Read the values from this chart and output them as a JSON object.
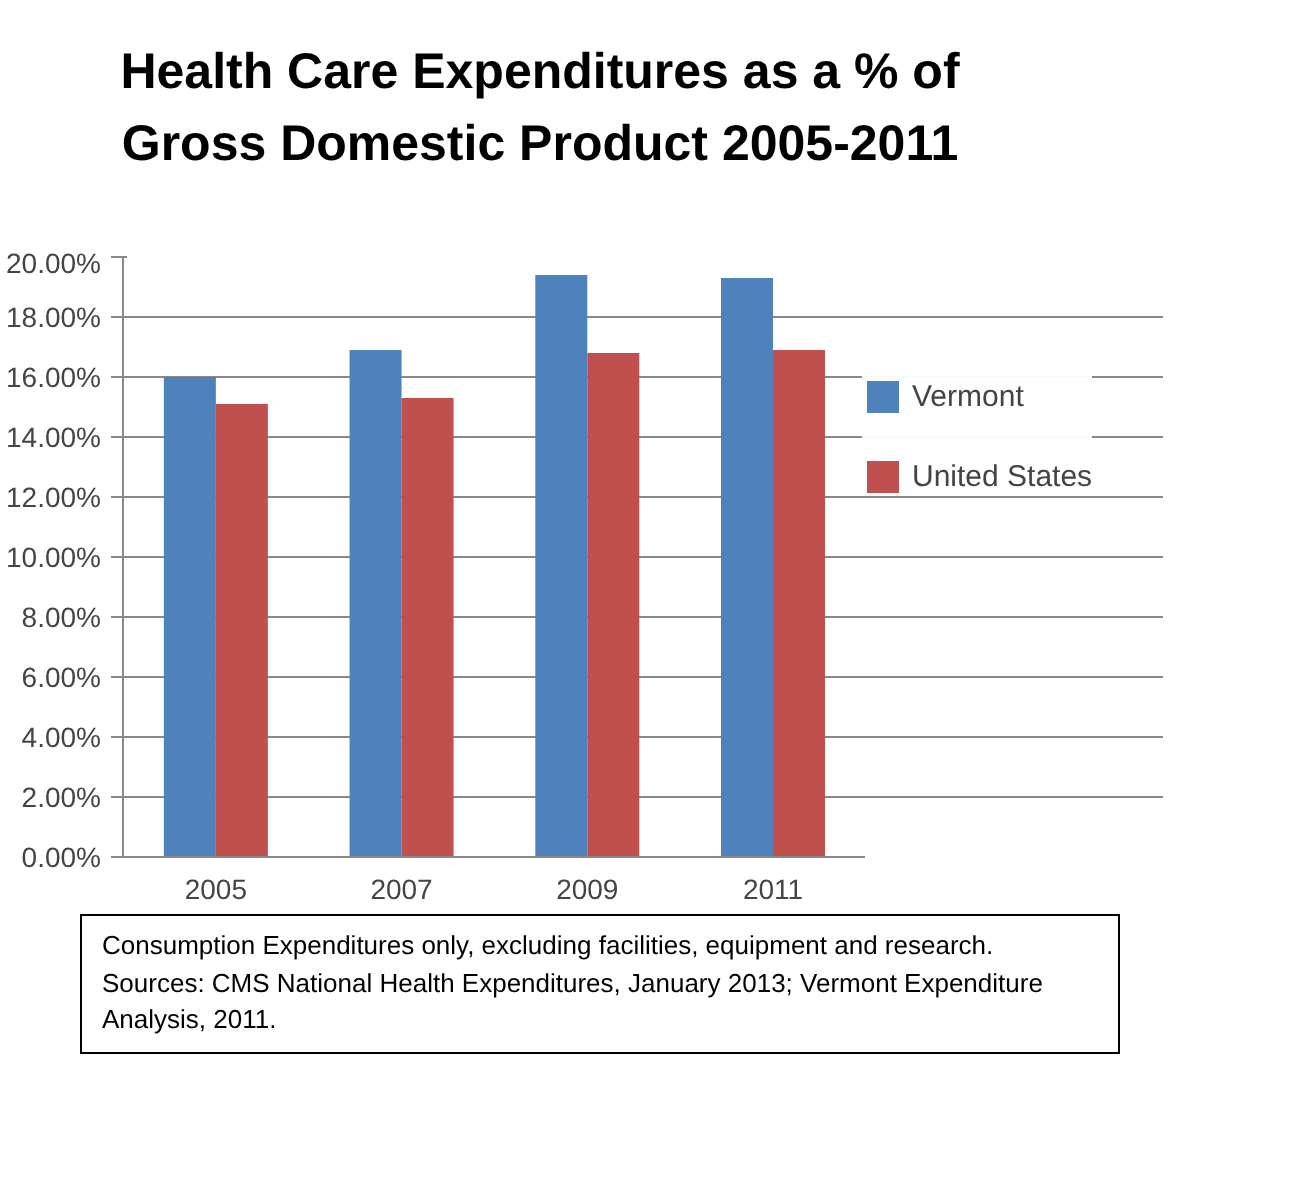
{
  "chart_data": {
    "type": "bar",
    "title": "Health Care Expenditures as a % of Gross Domestic Product 2005-2011",
    "categories": [
      "2005",
      "2007",
      "2009",
      "2011"
    ],
    "series": [
      {
        "name": "Vermont",
        "color": "#4f81bd",
        "values": [
          16.0,
          16.9,
          19.4,
          19.3
        ]
      },
      {
        "name": "United States",
        "color": "#c0504d",
        "values": [
          15.1,
          15.3,
          16.8,
          16.9
        ]
      }
    ],
    "ylim": [
      0,
      20
    ],
    "yticks": [
      {
        "value": 0,
        "label": "0.00%"
      },
      {
        "value": 2,
        "label": "2.00%"
      },
      {
        "value": 4,
        "label": "4.00%"
      },
      {
        "value": 6,
        "label": "6.00%"
      },
      {
        "value": 8,
        "label": "8.00%"
      },
      {
        "value": 10,
        "label": "10.00%"
      },
      {
        "value": 12,
        "label": "12.00%"
      },
      {
        "value": 14,
        "label": "14.00%"
      },
      {
        "value": 16,
        "label": "16.00%"
      },
      {
        "value": 18,
        "label": "18.00%"
      },
      {
        "value": 20,
        "label": "20.00%"
      }
    ],
    "grid": "y",
    "legend": "right",
    "annotations": [
      "Consumption Expenditures only, excluding facilities, equipment and research.",
      "Sources: CMS National Health Expenditures, January 2013; Vermont Expenditure Analysis, 2011."
    ]
  }
}
